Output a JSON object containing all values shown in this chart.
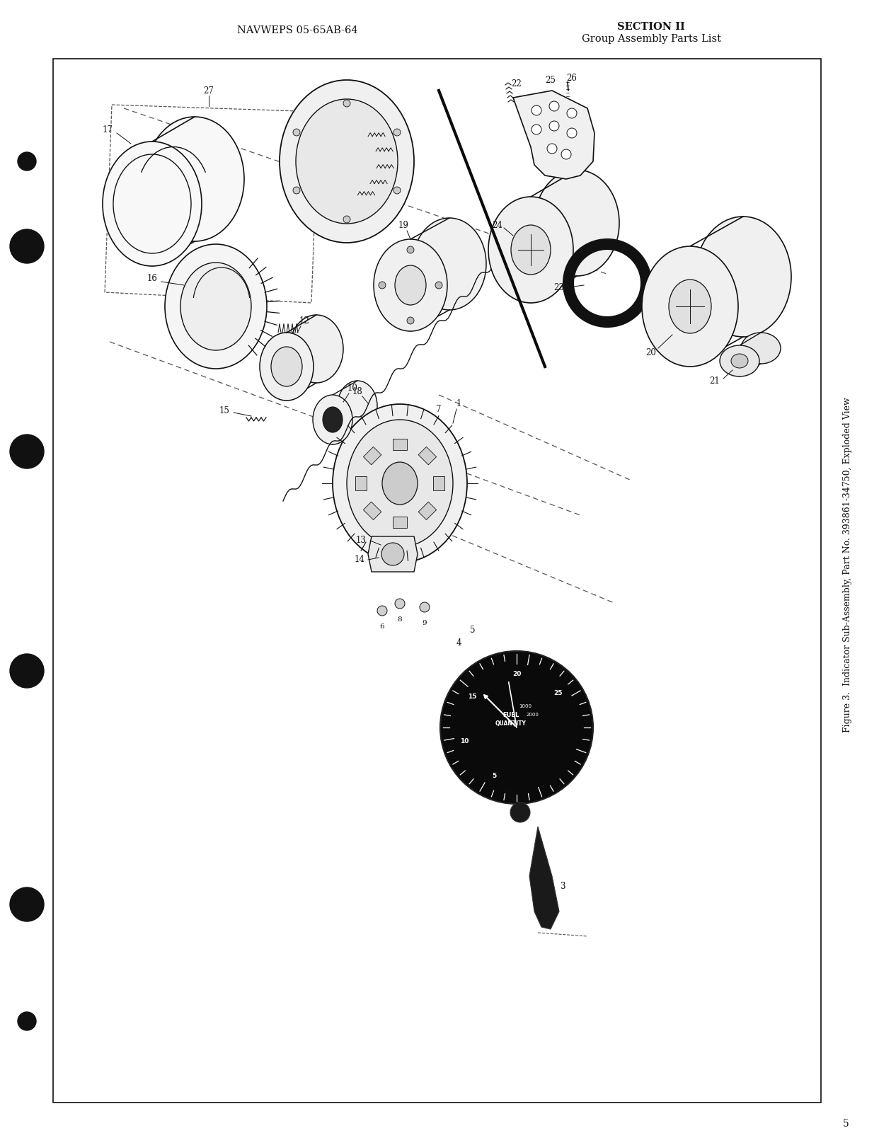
{
  "page_bg": "#ffffff",
  "content_bg": "#ffffff",
  "outer_bg": "#d8d8d0",
  "header_left": "NAVWEPS 05-65AB-64",
  "header_right_line1": "SECTION II",
  "header_right_line2": "Group Assembly Parts List",
  "side_caption": "Figure 3.  Indicator Sub-Assembly, Part No. 393861-34750, Exploded View",
  "page_number": "5",
  "border_color": "#111111",
  "text_color": "#111111",
  "ec": "#111111",
  "header_fontsize": 10.5,
  "caption_fontsize": 9.0,
  "label_fontsize": 8.5
}
